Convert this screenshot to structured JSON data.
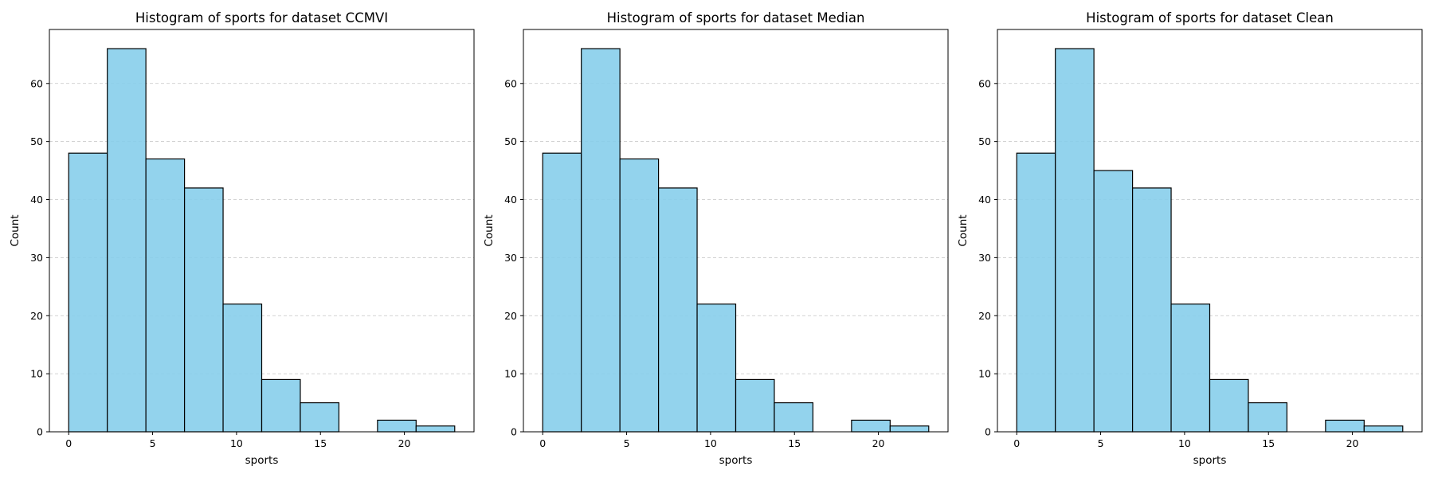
{
  "chart_data": [
    {
      "type": "bar",
      "title": "Histogram of sports for dataset CCMVI",
      "xlabel": "sports",
      "ylabel": "Count",
      "bin_edges": [
        0,
        2.3,
        4.6,
        6.9,
        9.2,
        11.5,
        13.8,
        16.1,
        18.4,
        20.7,
        23
      ],
      "values": [
        48,
        66,
        47,
        42,
        22,
        9,
        5,
        0,
        2,
        1
      ],
      "xlim": [
        -1.15,
        24.15
      ],
      "ylim": [
        0,
        69.3
      ],
      "xticks": [
        0,
        5,
        10,
        15,
        20
      ],
      "yticks": [
        0,
        10,
        20,
        30,
        40,
        50,
        60
      ],
      "grid": "y-dashed",
      "bar_color": "#87ceeb",
      "edge_color": "#000000"
    },
    {
      "type": "bar",
      "title": "Histogram of sports for dataset Median",
      "xlabel": "sports",
      "ylabel": "Count",
      "bin_edges": [
        0,
        2.3,
        4.6,
        6.9,
        9.2,
        11.5,
        13.8,
        16.1,
        18.4,
        20.7,
        23
      ],
      "values": [
        48,
        66,
        47,
        42,
        22,
        9,
        5,
        0,
        2,
        1
      ],
      "xlim": [
        -1.15,
        24.15
      ],
      "ylim": [
        0,
        69.3
      ],
      "xticks": [
        0,
        5,
        10,
        15,
        20
      ],
      "yticks": [
        0,
        10,
        20,
        30,
        40,
        50,
        60
      ],
      "grid": "y-dashed",
      "bar_color": "#87ceeb",
      "edge_color": "#000000"
    },
    {
      "type": "bar",
      "title": "Histogram of sports for dataset Clean",
      "xlabel": "sports",
      "ylabel": "Count",
      "bin_edges": [
        0,
        2.3,
        4.6,
        6.9,
        9.2,
        11.5,
        13.8,
        16.1,
        18.4,
        20.7,
        23
      ],
      "values": [
        48,
        66,
        45,
        42,
        22,
        9,
        5,
        0,
        2,
        1
      ],
      "xlim": [
        -1.15,
        24.15
      ],
      "ylim": [
        0,
        69.3
      ],
      "xticks": [
        0,
        5,
        10,
        15,
        20
      ],
      "yticks": [
        0,
        10,
        20,
        30,
        40,
        50,
        60
      ],
      "grid": "y-dashed",
      "bar_color": "#87ceeb",
      "edge_color": "#000000"
    }
  ]
}
